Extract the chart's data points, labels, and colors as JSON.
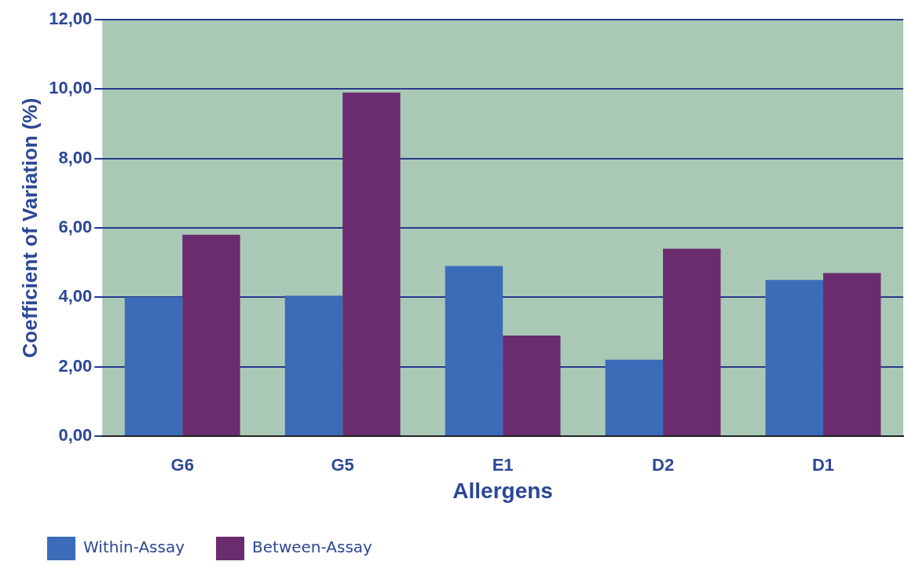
{
  "chart_data": {
    "type": "bar",
    "xlabel": "Allergens",
    "ylabel": "Coefficient of Variation (%)",
    "categories": [
      "G6",
      "G5",
      "E1",
      "D2",
      "D1"
    ],
    "series": [
      {
        "name": "Within-Assay",
        "color": "#3a6cb8",
        "values": [
          4.0,
          4.05,
          4.9,
          2.2,
          4.5
        ]
      },
      {
        "name": "Between-Assay",
        "color": "#6a2c6e",
        "values": [
          5.8,
          9.9,
          2.9,
          5.4,
          4.7
        ]
      }
    ],
    "ylim": [
      0,
      12
    ],
    "yticks": [
      {
        "value": 0,
        "label": "0,00"
      },
      {
        "value": 2,
        "label": "2,00"
      },
      {
        "value": 4,
        "label": "4,00"
      },
      {
        "value": 6,
        "label": "6,00"
      },
      {
        "value": 8,
        "label": "8,00"
      },
      {
        "value": 10,
        "label": "10,00"
      },
      {
        "value": 12,
        "label": "12,00"
      }
    ],
    "grid": "y",
    "legend": "bottom left"
  }
}
